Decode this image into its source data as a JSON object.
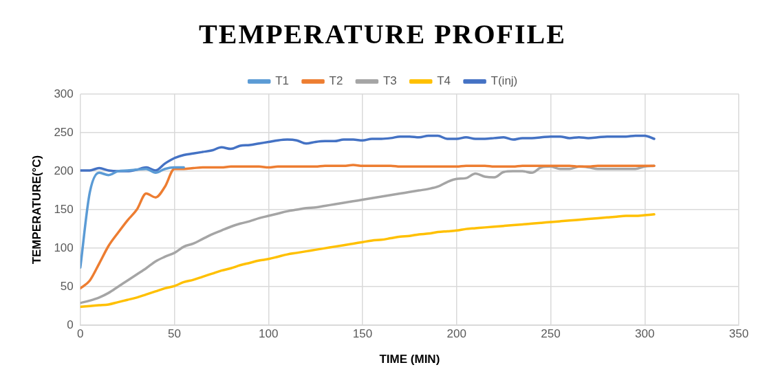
{
  "chart_data": {
    "type": "line",
    "title": "TEMPERATURE PROFILE",
    "xlabel": "TIME (MIN)",
    "ylabel": "TEMPERATURE(°C)",
    "x": [
      0,
      5,
      10,
      15,
      20,
      25,
      30,
      35,
      40,
      45,
      50,
      55,
      60,
      65,
      70,
      75,
      80,
      85,
      90,
      95,
      100,
      105,
      110,
      115,
      120,
      125,
      130,
      135,
      140,
      145,
      150,
      155,
      160,
      165,
      170,
      175,
      180,
      185,
      190,
      195,
      200,
      205,
      210,
      215,
      220,
      225,
      230,
      235,
      240,
      245,
      250,
      255,
      260,
      265,
      270,
      275,
      280,
      285,
      290,
      295,
      300,
      305
    ],
    "series": [
      {
        "name": "T1",
        "color": "#5b9bd5",
        "values": [
          75,
          172,
          198,
          195,
          200,
          201,
          202,
          203,
          198,
          203,
          205,
          205,
          null,
          null,
          null,
          null,
          null,
          null,
          null,
          null,
          null,
          null,
          null,
          null,
          null,
          null,
          null,
          null,
          null,
          null,
          null,
          null,
          null,
          null,
          null,
          null,
          null,
          null,
          null,
          null,
          null,
          null,
          null,
          null,
          null,
          null,
          null,
          null,
          null,
          null,
          null,
          null,
          null,
          null,
          null,
          null,
          null,
          null,
          null,
          null,
          null,
          null
        ]
      },
      {
        "name": "T2",
        "color": "#ed7d31",
        "values": [
          48,
          58,
          80,
          103,
          120,
          136,
          150,
          171,
          166,
          180,
          203,
          203,
          204,
          205,
          205,
          205,
          206,
          206,
          206,
          206,
          205,
          206,
          206,
          206,
          206,
          206,
          207,
          207,
          207,
          208,
          207,
          207,
          207,
          207,
          206,
          206,
          206,
          206,
          206,
          206,
          206,
          207,
          207,
          207,
          206,
          206,
          206,
          207,
          207,
          207,
          207,
          207,
          207,
          206,
          206,
          207,
          207,
          207,
          207,
          207,
          207,
          207
        ]
      },
      {
        "name": "T3",
        "color": "#a5a5a5",
        "values": [
          29,
          32,
          36,
          42,
          50,
          58,
          66,
          74,
          83,
          89,
          94,
          102,
          106,
          112,
          118,
          123,
          128,
          132,
          135,
          139,
          142,
          145,
          148,
          150,
          152,
          153,
          155,
          157,
          159,
          161,
          163,
          165,
          167,
          169,
          171,
          173,
          175,
          177,
          180,
          186,
          190,
          191,
          197,
          193,
          192,
          199,
          200,
          200,
          198,
          205,
          206,
          203,
          203,
          206,
          205,
          203,
          203,
          203,
          203,
          203,
          206,
          207
        ]
      },
      {
        "name": "T4",
        "color": "#ffc000",
        "values": [
          24,
          25,
          26,
          27,
          30,
          33,
          36,
          40,
          44,
          48,
          51,
          56,
          59,
          63,
          67,
          71,
          74,
          78,
          81,
          84,
          86,
          89,
          92,
          94,
          96,
          98,
          100,
          102,
          104,
          106,
          108,
          110,
          111,
          113,
          115,
          116,
          118,
          119,
          121,
          122,
          123,
          125,
          126,
          127,
          128,
          129,
          130,
          131,
          132,
          133,
          134,
          135,
          136,
          137,
          138,
          139,
          140,
          141,
          142,
          142,
          143,
          144
        ]
      },
      {
        "name": "T(inj)",
        "color": "#4472c4",
        "values": [
          201,
          201,
          204,
          201,
          200,
          200,
          202,
          205,
          201,
          210,
          217,
          221,
          223,
          225,
          227,
          231,
          229,
          233,
          234,
          236,
          238,
          240,
          241,
          240,
          236,
          238,
          239,
          239,
          241,
          241,
          240,
          242,
          242,
          243,
          245,
          245,
          244,
          246,
          246,
          242,
          242,
          244,
          242,
          242,
          243,
          244,
          241,
          243,
          243,
          244,
          245,
          245,
          243,
          244,
          243,
          244,
          245,
          245,
          245,
          246,
          246,
          242
        ]
      }
    ],
    "xlim": [
      0,
      350
    ],
    "xticks": [
      0,
      50,
      100,
      150,
      200,
      250,
      300,
      350
    ],
    "ylim": [
      0,
      300
    ],
    "yticks": [
      0,
      50,
      100,
      150,
      200,
      250,
      300
    ],
    "grid": true,
    "legend": "top",
    "marker": "none",
    "line_style": "solid"
  }
}
